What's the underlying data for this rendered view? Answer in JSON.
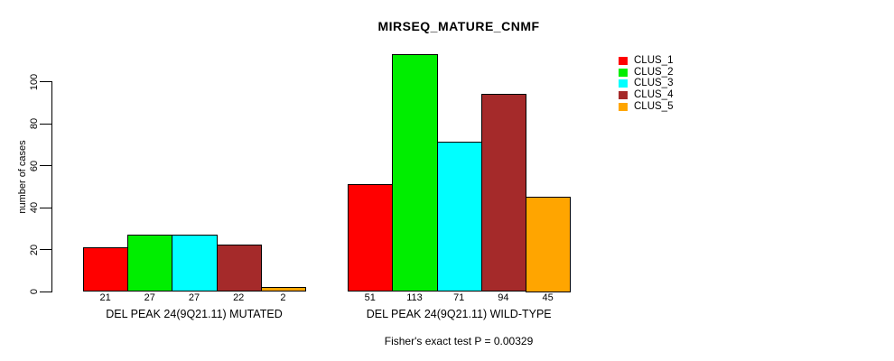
{
  "chart_data": {
    "type": "bar",
    "title": "MIRSEQ_MATURE_CNMF",
    "ylabel": "number of cases",
    "yticks": [
      0,
      20,
      40,
      60,
      80,
      100
    ],
    "ylim": [
      0,
      116
    ],
    "grid": false,
    "legend_position": "right-inside",
    "categories": [
      "DEL PEAK 24(9Q21.11) MUTATED",
      "DEL PEAK 24(9Q21.11) WILD-TYPE"
    ],
    "series": [
      {
        "name": "CLUS_1",
        "color": "#FF0000",
        "values": [
          21,
          51
        ]
      },
      {
        "name": "CLUS_2",
        "color": "#00EE00",
        "values": [
          27,
          113
        ]
      },
      {
        "name": "CLUS_3",
        "color": "#00FFFF",
        "values": [
          27,
          71
        ]
      },
      {
        "name": "CLUS_4",
        "color": "#A52A2A",
        "values": [
          22,
          94
        ]
      },
      {
        "name": "CLUS_5",
        "color": "#FFA500",
        "values": [
          2,
          45
        ]
      }
    ],
    "bar_value_labels": [
      [
        "21",
        "27",
        "27",
        "22",
        "2"
      ],
      [
        "51",
        "113",
        "71",
        "94",
        "45"
      ]
    ],
    "footnote": "Fisher's exact test P = 0.00329"
  }
}
